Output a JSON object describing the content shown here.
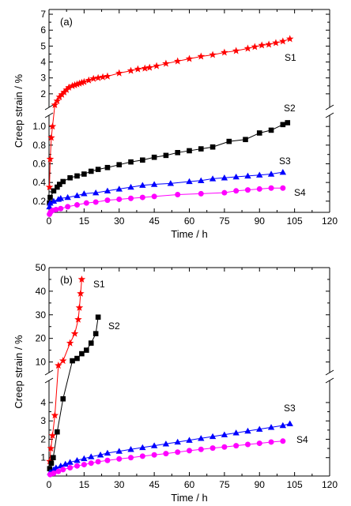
{
  "chart_data": [
    {
      "type": "line",
      "panel_label": "(a)",
      "xlabel": "Time / h",
      "ylabel": "Creep strain / %",
      "xlim": [
        0,
        120
      ],
      "x_ticks": [
        0,
        15,
        30,
        45,
        60,
        75,
        90,
        105,
        120
      ],
      "y_broken": true,
      "lower_segment": {
        "ylim": [
          0.08,
          1.12
        ],
        "ticks": [
          0.2,
          0.4,
          0.6,
          0.8,
          1.0
        ],
        "tick_labels": [
          "0.2",
          "0.4",
          "0.6",
          "0.8",
          "1.0"
        ]
      },
      "upper_segment": {
        "ylim": [
          1.15,
          7.3
        ],
        "ticks": [
          2,
          3,
          4,
          5,
          6,
          7
        ],
        "tick_labels": [
          "2",
          "3",
          "4",
          "5",
          "6",
          "7"
        ]
      },
      "series": [
        {
          "name": "S1",
          "color": "#ff0000",
          "marker": "star",
          "x": [
            0.2,
            0.5,
            1,
            1.5,
            2.5,
            3.5,
            4.5,
            5.5,
            6.5,
            7.5,
            8.5,
            10,
            11,
            12,
            13,
            14,
            15,
            17,
            19,
            21,
            23,
            25,
            30,
            35,
            38,
            41,
            43,
            46,
            50,
            55,
            60,
            65,
            70,
            75,
            80,
            85,
            88,
            91,
            94,
            97,
            100,
            103
          ],
          "y": [
            0.35,
            0.65,
            0.88,
            1.0,
            1.3,
            1.55,
            1.8,
            1.95,
            2.1,
            2.25,
            2.4,
            2.5,
            2.55,
            2.6,
            2.65,
            2.7,
            2.75,
            2.85,
            2.95,
            3.0,
            3.05,
            3.1,
            3.3,
            3.45,
            3.55,
            3.6,
            3.65,
            3.75,
            3.9,
            4.05,
            4.2,
            4.35,
            4.45,
            4.6,
            4.7,
            4.85,
            4.95,
            5.05,
            5.1,
            5.2,
            5.3,
            5.45
          ]
        },
        {
          "name": "S2",
          "color": "#000000",
          "marker": "square",
          "x": [
            0.2,
            0.5,
            2,
            3.5,
            4.5,
            6,
            9,
            12,
            15,
            18,
            21,
            25,
            30,
            35,
            40,
            45,
            50,
            55,
            60,
            65,
            70,
            77,
            84,
            90,
            95,
            100,
            102
          ],
          "y": [
            0.18,
            0.24,
            0.31,
            0.35,
            0.38,
            0.41,
            0.45,
            0.47,
            0.49,
            0.52,
            0.54,
            0.56,
            0.59,
            0.62,
            0.64,
            0.67,
            0.69,
            0.72,
            0.74,
            0.76,
            0.78,
            0.84,
            0.86,
            0.93,
            0.96,
            1.02,
            1.04
          ]
        },
        {
          "name": "S3",
          "color": "#0000ff",
          "marker": "triangle",
          "x": [
            0.2,
            0.5,
            2,
            4,
            5,
            8,
            12,
            15,
            20,
            25,
            30,
            35,
            40,
            45,
            52,
            60,
            65,
            70,
            75,
            80,
            85,
            90,
            95,
            100
          ],
          "y": [
            0.14,
            0.18,
            0.2,
            0.22,
            0.23,
            0.24,
            0.26,
            0.28,
            0.29,
            0.31,
            0.33,
            0.35,
            0.37,
            0.38,
            0.39,
            0.41,
            0.42,
            0.44,
            0.45,
            0.46,
            0.47,
            0.48,
            0.49,
            0.51
          ]
        },
        {
          "name": "S4",
          "color": "#ff00ff",
          "marker": "circle",
          "x": [
            0.2,
            0.6,
            1.5,
            3,
            5,
            8,
            12,
            16,
            20,
            25,
            30,
            35,
            40,
            45,
            55,
            65,
            75,
            80,
            85,
            90,
            95,
            100
          ],
          "y": [
            0.06,
            0.08,
            0.1,
            0.11,
            0.12,
            0.14,
            0.16,
            0.18,
            0.19,
            0.21,
            0.22,
            0.23,
            0.24,
            0.25,
            0.27,
            0.28,
            0.29,
            0.31,
            0.32,
            0.33,
            0.34,
            0.34
          ]
        }
      ]
    },
    {
      "type": "line",
      "panel_label": "(b)",
      "xlabel": "Time / h",
      "ylabel": "Creep strain / %",
      "xlim": [
        0,
        120
      ],
      "x_ticks": [
        0,
        15,
        30,
        45,
        60,
        75,
        90,
        105,
        120
      ],
      "y_broken": true,
      "lower_segment": {
        "ylim": [
          0,
          5.2
        ],
        "ticks": [
          1,
          2,
          3,
          4
        ],
        "tick_labels": [
          "1",
          "2",
          "3",
          "4"
        ]
      },
      "upper_segment": {
        "ylim": [
          5.5,
          50
        ],
        "ticks": [
          10,
          20,
          30,
          40,
          50
        ],
        "tick_labels": [
          "10",
          "20",
          "30",
          "40",
          "50"
        ]
      },
      "series": [
        {
          "name": "S1",
          "color": "#ff0000",
          "marker": "star",
          "x": [
            0.3,
            0.8,
            1.5,
            2.5,
            4,
            6,
            9,
            11,
            12.5,
            13,
            13.5,
            14
          ],
          "y": [
            0.8,
            1.5,
            2.2,
            3.3,
            8.5,
            10.5,
            18,
            22,
            28,
            33,
            39,
            45
          ]
        },
        {
          "name": "S2",
          "color": "#000000",
          "marker": "square",
          "x": [
            0.3,
            1,
            1.8,
            3.5,
            6,
            10,
            12,
            14,
            16,
            18,
            20,
            21
          ],
          "y": [
            0.4,
            0.7,
            1.0,
            2.4,
            4.2,
            10.5,
            11.5,
            13.5,
            15,
            18,
            22,
            29
          ]
        },
        {
          "name": "S3",
          "color": "#0000ff",
          "marker": "triangle",
          "x": [
            0.5,
            2,
            3,
            5,
            7,
            9,
            12,
            15,
            18,
            22,
            25,
            30,
            35,
            40,
            45,
            50,
            55,
            60,
            65,
            70,
            75,
            80,
            85,
            90,
            95,
            100,
            103
          ],
          "y": [
            0.2,
            0.35,
            0.45,
            0.55,
            0.65,
            0.75,
            0.85,
            0.95,
            1.05,
            1.15,
            1.25,
            1.35,
            1.45,
            1.55,
            1.65,
            1.75,
            1.85,
            1.95,
            2.05,
            2.15,
            2.25,
            2.35,
            2.45,
            2.55,
            2.65,
            2.75,
            2.85
          ]
        },
        {
          "name": "S4",
          "color": "#ff00ff",
          "marker": "circle",
          "x": [
            0.5,
            2,
            4,
            6,
            9,
            12,
            15,
            18,
            21,
            25,
            30,
            35,
            40,
            45,
            50,
            55,
            60,
            65,
            70,
            75,
            80,
            85,
            90,
            95,
            100
          ],
          "y": [
            0.08,
            0.15,
            0.25,
            0.35,
            0.45,
            0.55,
            0.62,
            0.7,
            0.78,
            0.85,
            0.93,
            1.0,
            1.08,
            1.15,
            1.22,
            1.3,
            1.38,
            1.45,
            1.52,
            1.58,
            1.65,
            1.72,
            1.78,
            1.85,
            1.9
          ]
        }
      ]
    }
  ]
}
